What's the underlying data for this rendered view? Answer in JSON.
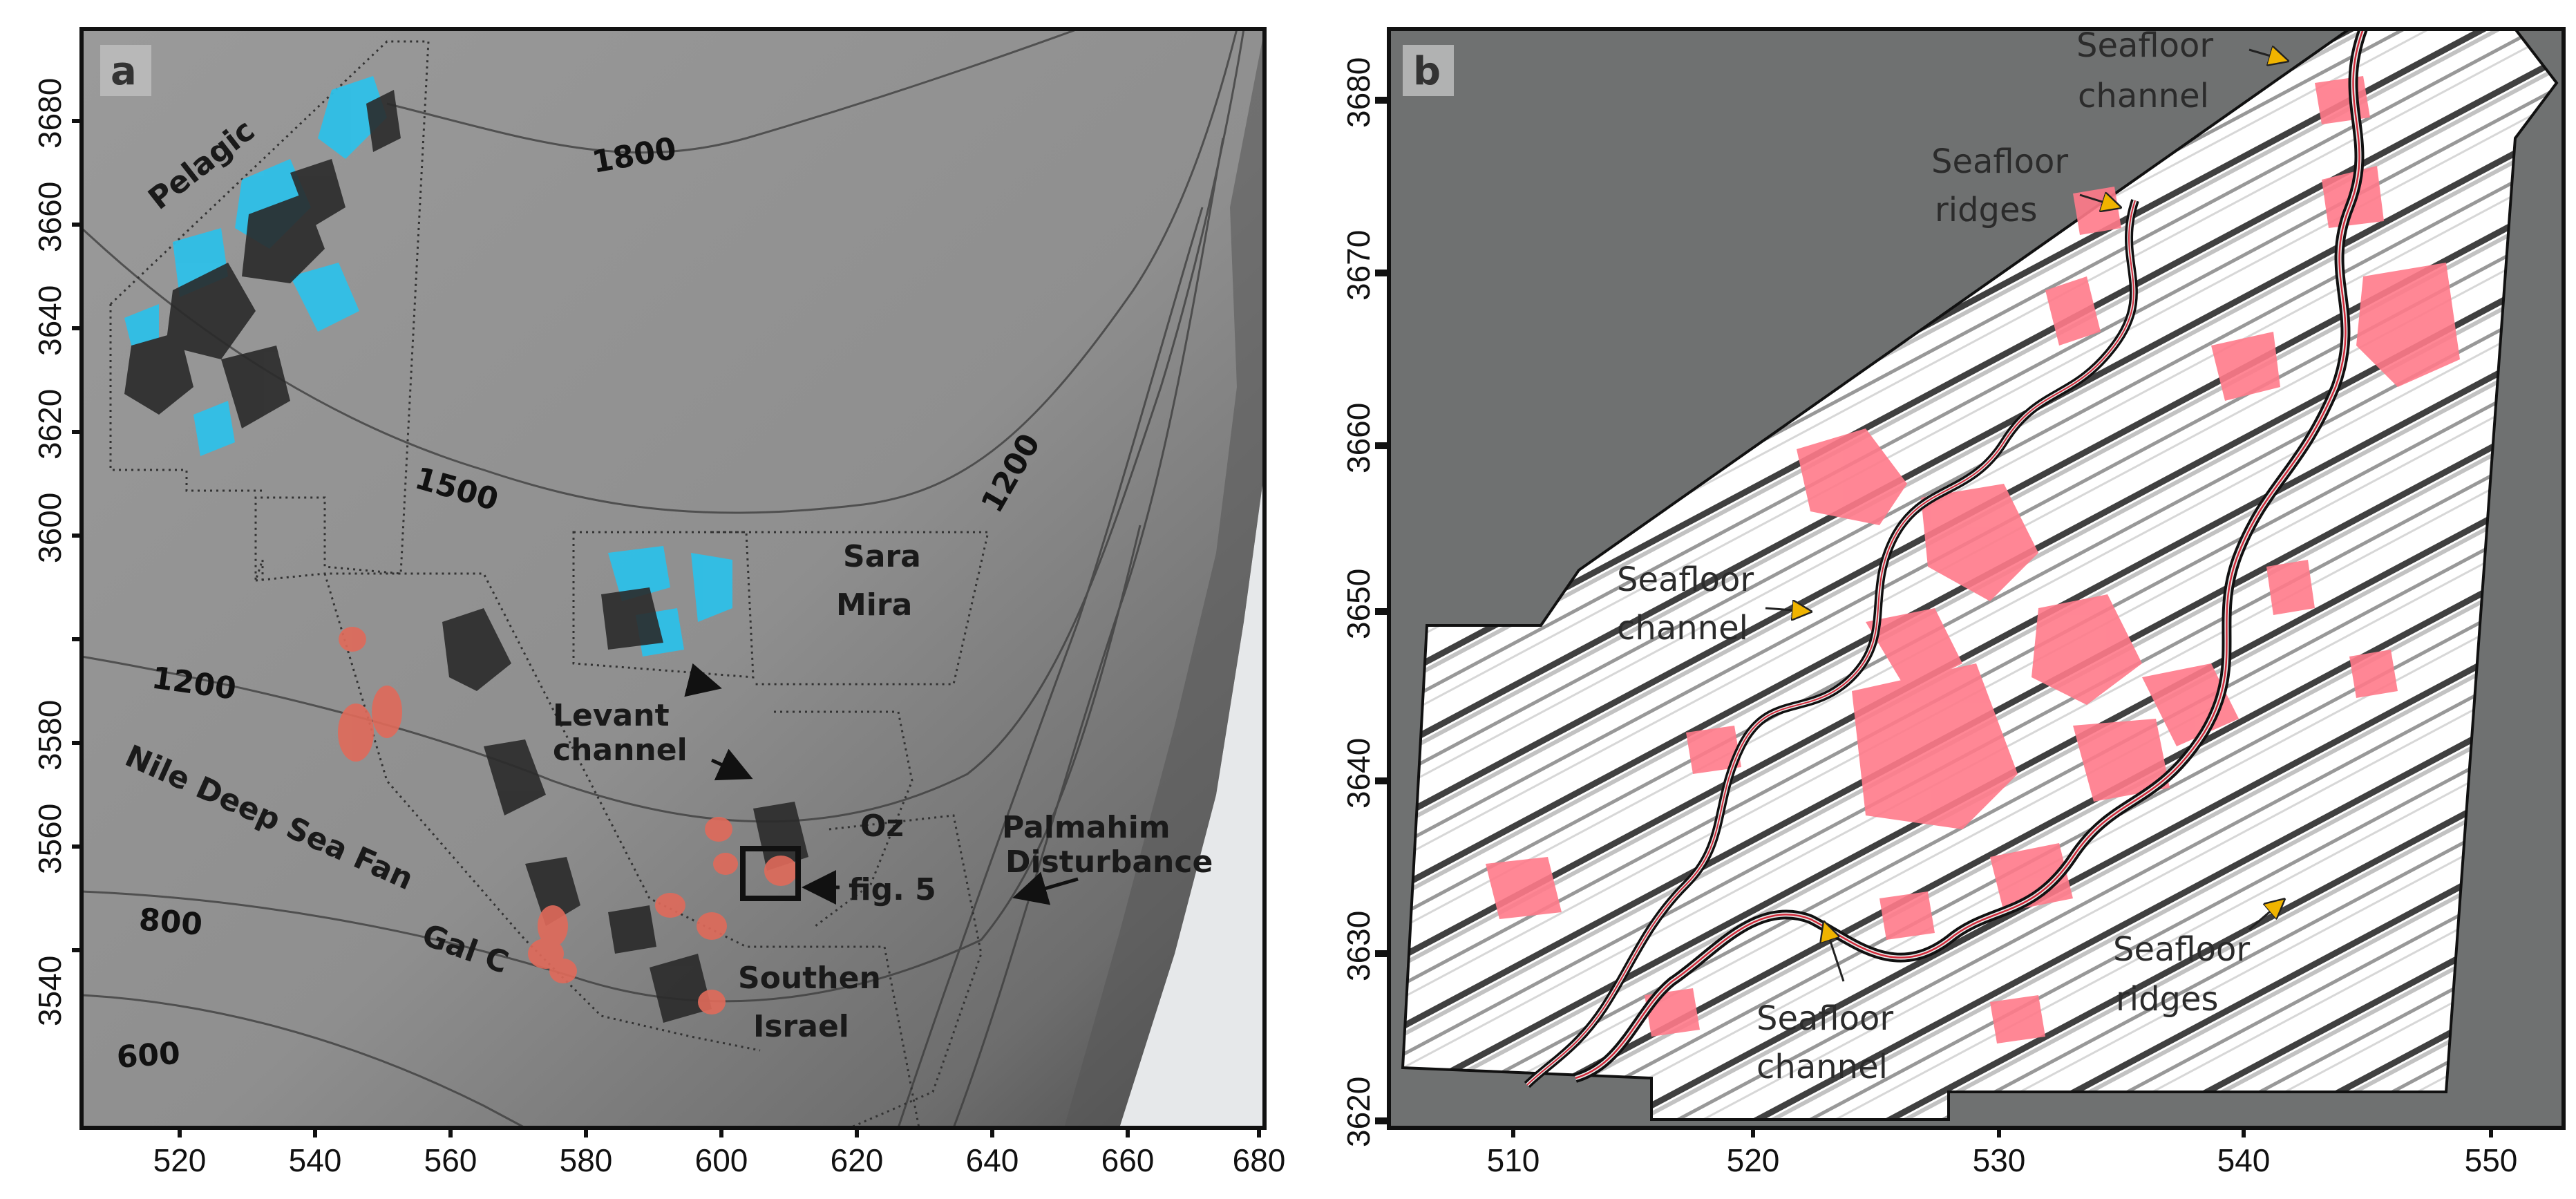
{
  "panel_a": {
    "letter": "a",
    "y_ticks": [
      "3680",
      "3660",
      "3640",
      "3620",
      "3600",
      "3580",
      "3560",
      "3540"
    ],
    "x_ticks": [
      "520",
      "540",
      "560",
      "580",
      "600",
      "620",
      "640",
      "660",
      "680"
    ],
    "contours": [
      "1800",
      "1500",
      "1200",
      "1200",
      "800",
      "600"
    ],
    "labels": {
      "pelagic": "Pelagic",
      "sara": "Sara",
      "mira": "Mira",
      "levant_1": "Levant",
      "levant_2": "channel",
      "nile": "Nile Deep Sea Fan",
      "oz": "Oz",
      "palmahim_1": "Palmahim",
      "palmahim_2": "Disturbance",
      "fig5": "fig. 5",
      "galc": "Gal C",
      "southen": "Southen",
      "israel": "Israel"
    },
    "colors": {
      "bathymetry": "#8e8e8e",
      "cyan_features": "#2ec0e8",
      "red_features": "#e06a5a",
      "dark_features": "#2a2a2a"
    }
  },
  "panel_b": {
    "letter": "b",
    "y_ticks": [
      "3680",
      "3670",
      "3660",
      "3650",
      "3640",
      "3630",
      "3620"
    ],
    "x_ticks": [
      "510",
      "520",
      "530",
      "540",
      "550"
    ],
    "labels": {
      "top_channel_1": "Seafloor",
      "top_channel_2": "channel",
      "ridges_top_1": "Seafloor",
      "ridges_top_2": "ridges",
      "left_channel_1": "Seafloor",
      "left_channel_2": "channel",
      "bottom_channel_1": "Seafloor",
      "bottom_channel_2": "channel",
      "ridges_right_1": "Seafloor",
      "ridges_right_2": "ridges"
    },
    "colors": {
      "background": "#6f7171",
      "pink_features": "#ff7a8a",
      "arrow": "#f0b400"
    }
  }
}
